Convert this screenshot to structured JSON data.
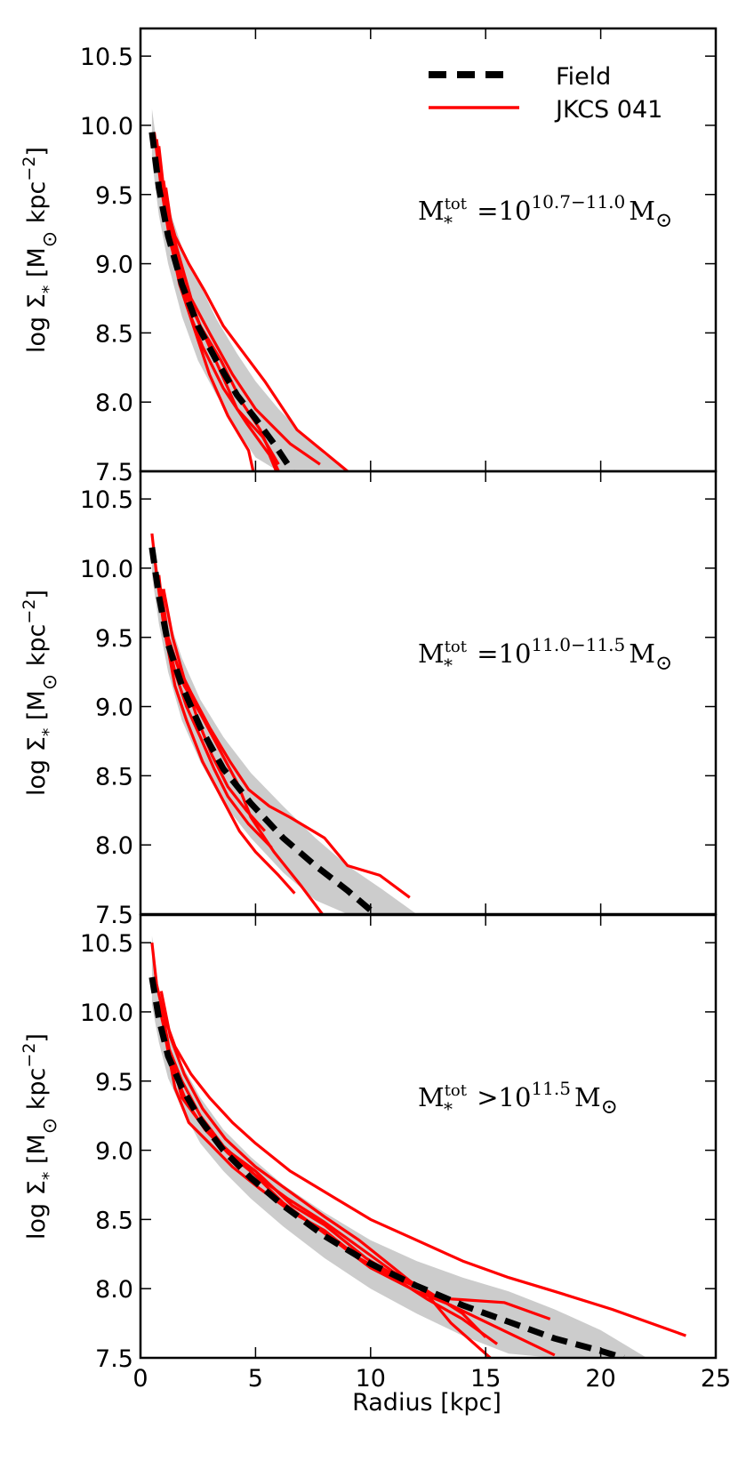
{
  "chart_data": {
    "type": "line",
    "layout": "three vertically stacked panels sharing x axis",
    "xlabel": "Radius [kpc]",
    "xlim": [
      0,
      25
    ],
    "x_ticks": [
      "0",
      "5",
      "10",
      "15",
      "20",
      "25"
    ],
    "ylim": [
      7.5,
      10.7
    ],
    "y_ticks": [
      "7.5",
      "8.0",
      "8.5",
      "9.0",
      "9.5",
      "10.0",
      "10.5"
    ],
    "legend": {
      "placement": "top-right of top panel",
      "entries": [
        {
          "label": "Field",
          "style": "dashed",
          "color": "#000000"
        },
        {
          "label": "JKCS 041",
          "style": "solid",
          "color": "#ff0000"
        }
      ]
    },
    "colors": {
      "field": "#000000",
      "cluster": "#ff0000",
      "band": "#cccccc"
    },
    "panels": [
      {
        "ylabel_pre": "log Σ",
        "ylabel_sub": "*",
        "ylabel_mid": " [M",
        "ylabel_sun": "⊙",
        "ylabel_unit": " kpc",
        "ylabel_exp": "−2",
        "ylabel_end": "]",
        "annotation": {
          "base": "M",
          "sub": "*",
          "sup": "tot",
          "rel": " =10",
          "exp": "10.7−11.0",
          "tail": "M",
          "sun": "⊙"
        },
        "field": {
          "x": [
            0.5,
            0.8,
            1.2,
            1.8,
            2.5,
            3.3,
            4.2,
            5.0,
            5.8,
            6.6
          ],
          "y": [
            9.95,
            9.55,
            9.2,
            8.85,
            8.55,
            8.3,
            8.05,
            7.88,
            7.7,
            7.5
          ]
        },
        "band": {
          "x": [
            0.5,
            0.8,
            1.2,
            1.8,
            2.5,
            3.3,
            4.2,
            5.0,
            6.0,
            7.0,
            8.0,
            9.0
          ],
          "upper": [
            10.12,
            9.75,
            9.42,
            9.12,
            8.88,
            8.6,
            8.35,
            8.15,
            7.95,
            7.78,
            7.62,
            7.5
          ],
          "lower": [
            9.75,
            9.35,
            9.0,
            8.62,
            8.3,
            8.05,
            7.8,
            7.6,
            7.5,
            7.5,
            7.5,
            7.5
          ]
        },
        "series": [
          {
            "name": "JKCS 041",
            "x": [
              0.6,
              0.9,
              1.3,
              1.9,
              2.6,
              3.5,
              4.4,
              5.2,
              6.0
            ],
            "y": [
              9.95,
              9.55,
              9.15,
              8.8,
              8.55,
              8.3,
              8.0,
              7.8,
              7.5
            ]
          },
          {
            "name": "JKCS 041",
            "x": [
              0.7,
              1.0,
              1.5,
              2.1,
              2.8,
              3.6,
              4.5,
              5.4,
              6.8,
              9.0
            ],
            "y": [
              9.9,
              9.5,
              9.2,
              9.0,
              8.8,
              8.55,
              8.35,
              8.15,
              7.8,
              7.5
            ]
          },
          {
            "name": "JKCS 041",
            "x": [
              0.8,
              1.1,
              1.6,
              2.2,
              3.0,
              4.0,
              5.0,
              6.5,
              7.8
            ],
            "y": [
              9.85,
              9.4,
              9.1,
              8.75,
              8.5,
              8.2,
              7.95,
              7.7,
              7.55
            ]
          },
          {
            "name": "JKCS 041",
            "x": [
              1.0,
              1.4,
              1.9,
              2.6,
              3.4,
              4.2,
              5.3,
              6.0
            ],
            "y": [
              9.6,
              9.15,
              8.85,
              8.55,
              8.25,
              7.95,
              7.75,
              7.55
            ]
          },
          {
            "name": "JKCS 041",
            "x": [
              1.1,
              1.5,
              2.0,
              2.7,
              3.6,
              4.6,
              5.6,
              5.9
            ],
            "y": [
              9.55,
              9.1,
              8.7,
              8.4,
              8.1,
              7.85,
              7.62,
              7.5
            ]
          },
          {
            "name": "JKCS 041",
            "x": [
              1.2,
              1.7,
              2.3,
              3.0,
              3.8,
              4.7,
              4.9
            ],
            "y": [
              9.25,
              8.85,
              8.55,
              8.2,
              7.9,
              7.65,
              7.5
            ]
          }
        ]
      },
      {
        "ylabel_pre": "log Σ",
        "ylabel_sub": "*",
        "ylabel_mid": " [M",
        "ylabel_sun": "⊙",
        "ylabel_unit": " kpc",
        "ylabel_exp": "−2",
        "ylabel_end": "]",
        "annotation": {
          "base": "M",
          "sub": "*",
          "sup": "tot",
          "rel": " =10",
          "exp": "11.0−11.5",
          "tail": "M",
          "sun": "⊙"
        },
        "field": {
          "x": [
            0.5,
            0.8,
            1.2,
            1.8,
            2.6,
            3.6,
            4.8,
            6.2,
            7.6,
            9.0,
            10.2
          ],
          "y": [
            10.15,
            9.8,
            9.45,
            9.15,
            8.85,
            8.55,
            8.3,
            8.05,
            7.85,
            7.67,
            7.5
          ]
        },
        "band": {
          "x": [
            0.5,
            0.8,
            1.2,
            1.8,
            2.6,
            3.6,
            4.8,
            6.2,
            7.6,
            9.0,
            10.5,
            12.0
          ],
          "upper": [
            10.25,
            9.95,
            9.65,
            9.35,
            9.05,
            8.78,
            8.52,
            8.28,
            8.05,
            7.85,
            7.68,
            7.5
          ],
          "lower": [
            9.95,
            9.6,
            9.25,
            8.9,
            8.6,
            8.3,
            8.05,
            7.8,
            7.6,
            7.5,
            7.5,
            7.5
          ]
        },
        "series": [
          {
            "name": "JKCS 041",
            "x": [
              0.5,
              0.7,
              1.0,
              1.4,
              1.9,
              2.6,
              3.4,
              4.2,
              4.8,
              5.8,
              7.0,
              7.9
            ],
            "y": [
              10.25,
              9.95,
              9.6,
              9.4,
              9.15,
              8.95,
              8.7,
              8.45,
              8.2,
              7.95,
              7.7,
              7.5
            ]
          },
          {
            "name": "JKCS 041",
            "x": [
              0.9,
              1.2,
              1.6,
              2.2,
              3.0,
              3.9,
              4.7,
              5.6,
              6.5,
              7.3,
              8.0,
              9.0,
              10.4,
              11.7
            ],
            "y": [
              9.85,
              9.5,
              9.3,
              9.1,
              8.85,
              8.6,
              8.4,
              8.28,
              8.2,
              8.12,
              8.05,
              7.85,
              7.78,
              7.62
            ]
          },
          {
            "name": "JKCS 041",
            "x": [
              0.8,
              1.1,
              1.5,
              2.0,
              2.7,
              3.5,
              4.3,
              5.0,
              6.0,
              6.7
            ],
            "y": [
              9.95,
              9.5,
              9.15,
              8.9,
              8.6,
              8.35,
              8.1,
              7.95,
              7.78,
              7.65
            ]
          },
          {
            "name": "JKCS 041",
            "x": [
              1.0,
              1.4,
              1.9,
              2.5,
              3.1,
              3.8,
              4.6,
              5.4
            ],
            "y": [
              9.85,
              9.5,
              9.2,
              8.9,
              8.65,
              8.42,
              8.25,
              8.1
            ]
          },
          {
            "name": "JKCS 041",
            "x": [
              1.1,
              1.5,
              2.0,
              2.6,
              3.2,
              3.8,
              4.7,
              5.7
            ],
            "y": [
              9.55,
              9.25,
              9.0,
              8.78,
              8.55,
              8.35,
              8.15,
              7.98
            ]
          }
        ]
      },
      {
        "ylabel_pre": "log Σ",
        "ylabel_sub": "*",
        "ylabel_mid": " [M",
        "ylabel_sun": "⊙",
        "ylabel_unit": " kpc",
        "ylabel_exp": "−2",
        "ylabel_end": "]",
        "annotation": {
          "base": "M",
          "sub": "*",
          "sup": "tot",
          "rel": " >10",
          "exp": "11.5",
          "tail": "M",
          "sun": "⊙"
        },
        "field": {
          "x": [
            0.5,
            0.8,
            1.2,
            1.8,
            2.6,
            3.6,
            4.8,
            6.2,
            8.0,
            10.0,
            12.0,
            14.0,
            16.0,
            18.0,
            20.0,
            21.0
          ],
          "y": [
            10.25,
            9.95,
            9.68,
            9.45,
            9.22,
            9.0,
            8.8,
            8.6,
            8.38,
            8.18,
            8.02,
            7.88,
            7.76,
            7.64,
            7.55,
            7.5
          ]
        },
        "band": {
          "x": [
            0.5,
            0.8,
            1.2,
            1.8,
            2.6,
            3.6,
            4.8,
            6.2,
            8.0,
            10.0,
            12.0,
            14.0,
            16.0,
            18.0,
            20.0,
            22.0
          ],
          "upper": [
            10.55,
            10.15,
            9.85,
            9.62,
            9.38,
            9.15,
            8.95,
            8.75,
            8.55,
            8.35,
            8.2,
            8.08,
            7.98,
            7.85,
            7.7,
            7.5
          ],
          "lower": [
            10.05,
            9.78,
            9.52,
            9.3,
            9.05,
            8.85,
            8.65,
            8.45,
            8.22,
            8.0,
            7.82,
            7.66,
            7.53,
            7.5,
            7.5,
            7.5
          ]
        },
        "series": [
          {
            "name": "JKCS 041",
            "x": [
              0.5,
              0.7,
              1.0,
              1.5,
              2.2,
              3.0,
              4.0,
              5.0,
              6.5,
              8.0,
              10.0,
              12.0,
              14.0,
              16.0,
              18.0,
              20.5,
              23.7
            ],
            "y": [
              10.5,
              10.2,
              9.98,
              9.75,
              9.55,
              9.38,
              9.2,
              9.05,
              8.85,
              8.7,
              8.5,
              8.35,
              8.2,
              8.08,
              7.98,
              7.85,
              7.66
            ]
          },
          {
            "name": "JKCS 041",
            "x": [
              0.8,
              1.2,
              1.8,
              2.6,
              3.6,
              4.8,
              6.2,
              8.0,
              10.0,
              12.0,
              13.5,
              15.5,
              18.0
            ],
            "y": [
              10.05,
              9.75,
              9.5,
              9.25,
              9.03,
              8.85,
              8.62,
              8.4,
              8.15,
              7.98,
              7.88,
              7.72,
              7.52
            ]
          },
          {
            "name": "JKCS 041",
            "x": [
              0.9,
              1.3,
              1.9,
              2.7,
              3.7,
              5.0,
              6.5,
              8.0,
              9.5,
              11.0,
              12.5,
              13.5,
              15.2
            ],
            "y": [
              10.15,
              9.82,
              9.55,
              9.3,
              9.08,
              8.88,
              8.7,
              8.52,
              8.35,
              8.15,
              7.95,
              7.75,
              7.5
            ]
          },
          {
            "name": "JKCS 041",
            "x": [
              1.0,
              1.4,
              2.0,
              2.8,
              3.8,
              5.0,
              6.4,
              8.0,
              9.5,
              11.0,
              12.5,
              14.0,
              15.0
            ],
            "y": [
              9.95,
              9.6,
              9.35,
              9.15,
              8.98,
              8.82,
              8.65,
              8.48,
              8.3,
              8.12,
              7.98,
              7.82,
              7.65
            ]
          },
          {
            "name": "JKCS 041",
            "x": [
              1.1,
              1.5,
              2.1,
              3.0,
              4.0,
              5.2,
              6.6,
              8.0,
              9.5,
              11.0,
              12.5,
              14.0,
              15.5
            ],
            "y": [
              9.8,
              9.45,
              9.2,
              9.05,
              8.88,
              8.72,
              8.55,
              8.42,
              8.22,
              8.08,
              7.92,
              7.78,
              7.6
            ]
          },
          {
            "name": "JKCS 041",
            "x": [
              1.3,
              1.8,
              2.6,
              3.6,
              5.0,
              6.6,
              8.0,
              9.8,
              11.5,
              13.0,
              14.0,
              15.8,
              17.8
            ],
            "y": [
              9.7,
              9.38,
              9.2,
              9.02,
              8.85,
              8.6,
              8.46,
              8.22,
              8.05,
              7.93,
              7.92,
              7.9,
              7.78
            ]
          }
        ]
      }
    ]
  }
}
